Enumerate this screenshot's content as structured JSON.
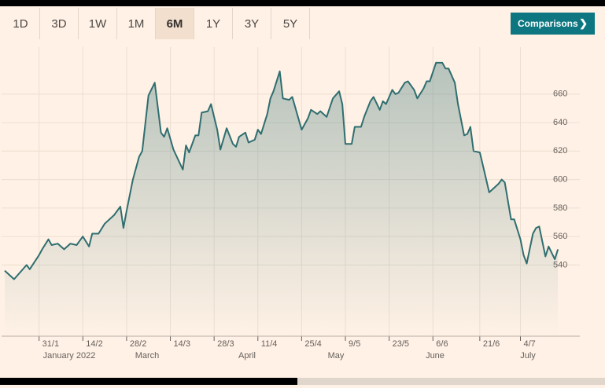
{
  "tabs": [
    "1D",
    "3D",
    "1W",
    "1M",
    "6M",
    "1Y",
    "3Y",
    "5Y"
  ],
  "selected_tab": "6M",
  "comparisons_button": "Comparisons",
  "chart_data": {
    "type": "area",
    "x": [
      "2022-01-20",
      "2022-01-23",
      "2022-01-27",
      "2022-01-28",
      "2022-01-31",
      "2022-02-01",
      "2022-02-03",
      "2022-02-04",
      "2022-02-06",
      "2022-02-08",
      "2022-02-10",
      "2022-02-12",
      "2022-02-14",
      "2022-02-16",
      "2022-02-17",
      "2022-02-19",
      "2022-02-21",
      "2022-02-24",
      "2022-02-26",
      "2022-02-27",
      "2022-02-28",
      "2022-03-02",
      "2022-03-04",
      "2022-03-05",
      "2022-03-07",
      "2022-03-09",
      "2022-03-11",
      "2022-03-12",
      "2022-03-13",
      "2022-03-15",
      "2022-03-18",
      "2022-03-19",
      "2022-03-20",
      "2022-03-22",
      "2022-03-23",
      "2022-03-24",
      "2022-03-26",
      "2022-03-27",
      "2022-03-29",
      "2022-03-30",
      "2022-04-01",
      "2022-04-03",
      "2022-04-04",
      "2022-04-05",
      "2022-04-07",
      "2022-04-08",
      "2022-04-10",
      "2022-04-11",
      "2022-04-12",
      "2022-04-14",
      "2022-04-15",
      "2022-04-16",
      "2022-04-18",
      "2022-04-19",
      "2022-04-21",
      "2022-04-22",
      "2022-04-25",
      "2022-04-27",
      "2022-04-28",
      "2022-04-30",
      "2022-05-01",
      "2022-05-03",
      "2022-05-05",
      "2022-05-07",
      "2022-05-08",
      "2022-05-09",
      "2022-05-11",
      "2022-05-12",
      "2022-05-14",
      "2022-05-15",
      "2022-05-17",
      "2022-05-18",
      "2022-05-20",
      "2022-05-21",
      "2022-05-22",
      "2022-05-24",
      "2022-05-25",
      "2022-05-26",
      "2022-05-28",
      "2022-05-29",
      "2022-05-31",
      "2022-06-01",
      "2022-06-03",
      "2022-06-04",
      "2022-06-05",
      "2022-06-07",
      "2022-06-09",
      "2022-06-10",
      "2022-06-11",
      "2022-06-13",
      "2022-06-14",
      "2022-06-16",
      "2022-06-17",
      "2022-06-18",
      "2022-06-19",
      "2022-06-21",
      "2022-06-22",
      "2022-06-24",
      "2022-06-25",
      "2022-06-27",
      "2022-06-28",
      "2022-06-29",
      "2022-07-01",
      "2022-07-02",
      "2022-07-04",
      "2022-07-05",
      "2022-07-06",
      "2022-07-08",
      "2022-07-09",
      "2022-07-10",
      "2022-07-12",
      "2022-07-13",
      "2022-07-15",
      "2022-07-16"
    ],
    "values": [
      536,
      530,
      540,
      537,
      547,
      551,
      558,
      554,
      555,
      551,
      555,
      554,
      560,
      553,
      562,
      562,
      569,
      575,
      581,
      566,
      578,
      600,
      616,
      620,
      659,
      668,
      633,
      630,
      636,
      621,
      607,
      624,
      619,
      631,
      631,
      647,
      648,
      653,
      635,
      621,
      636,
      625,
      623,
      630,
      633,
      626,
      628,
      635,
      632,
      646,
      657,
      662,
      676,
      657,
      656,
      658,
      635,
      643,
      649,
      646,
      648,
      644,
      657,
      662,
      653,
      625,
      625,
      637,
      637,
      644,
      655,
      658,
      649,
      655,
      653,
      663,
      660,
      661,
      668,
      669,
      663,
      657,
      664,
      669,
      669,
      682,
      682,
      678,
      678,
      668,
      653,
      631,
      632,
      637,
      620,
      619,
      610,
      591,
      593,
      597,
      600,
      598,
      572,
      572,
      558,
      547,
      541,
      562,
      566,
      567,
      546,
      553,
      544,
      551
    ],
    "color": "#2f6e70",
    "xlim": [
      "2022-01-19",
      "2022-07-23"
    ],
    "xticks": [
      {
        "value": "2022-01-31",
        "label": "31/1"
      },
      {
        "value": "2022-02-14",
        "label": "14/2"
      },
      {
        "value": "2022-02-28",
        "label": "28/2"
      },
      {
        "value": "2022-03-14",
        "label": "14/3"
      },
      {
        "value": "2022-03-28",
        "label": "28/3"
      },
      {
        "value": "2022-04-11",
        "label": "11/4"
      },
      {
        "value": "2022-04-25",
        "label": "25/4"
      },
      {
        "value": "2022-05-09",
        "label": "9/5"
      },
      {
        "value": "2022-05-23",
        "label": "23/5"
      },
      {
        "value": "2022-06-06",
        "label": "6/6"
      },
      {
        "value": "2022-06-21",
        "label": "21/6"
      },
      {
        "value": "2022-07-04",
        "label": "4/7"
      }
    ],
    "month_labels": [
      "January 2022",
      "March",
      "April",
      "May",
      "June",
      "July"
    ],
    "ylim": [
      490,
      693
    ],
    "yticks": [
      540,
      560,
      580,
      600,
      620,
      640,
      660
    ],
    "grid": true
  }
}
